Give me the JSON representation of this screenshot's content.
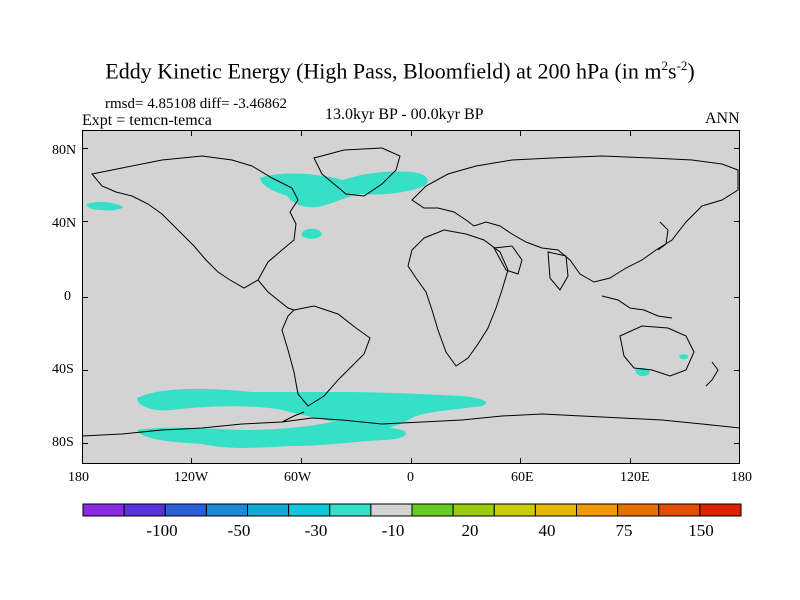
{
  "title": "Eddy Kinetic Energy (High Pass, Bloomfield) at 200 hPa (in m",
  "title_unit_sup1": "2",
  "title_unit_mid": "s",
  "title_unit_sup2": "-2",
  "title_close": ")",
  "stats": "rmsd= 4.85108 diff= -3.46862",
  "experiment": "Expt = temcn-temca",
  "period": "13.0kyr BP - 00.0kyr BP",
  "season": "ANN",
  "lat_ticks": [
    "80N",
    "40N",
    "0",
    "40S",
    "80S"
  ],
  "lon_ticks": [
    "180",
    "120W",
    "60W",
    "0",
    "60E",
    "120E",
    "180"
  ],
  "colorbar": {
    "colors": [
      "#8a2be2",
      "#5a32dc",
      "#2a5fd8",
      "#1e88d8",
      "#14a8d8",
      "#10c8d8",
      "#36e0c8",
      "#d3d3d3",
      "#66cc22",
      "#99cc11",
      "#c8cc00",
      "#e6b800",
      "#ee9900",
      "#e87000",
      "#e05000",
      "#dd2200"
    ],
    "labels": [
      "-100",
      "-50",
      "-30",
      "-10",
      "20",
      "40",
      "75",
      "150"
    ]
  },
  "colors": {
    "land_sea_neutral": "#d3d3d3",
    "anomaly_fill": "#36e0c8",
    "coastline": "#000000"
  }
}
